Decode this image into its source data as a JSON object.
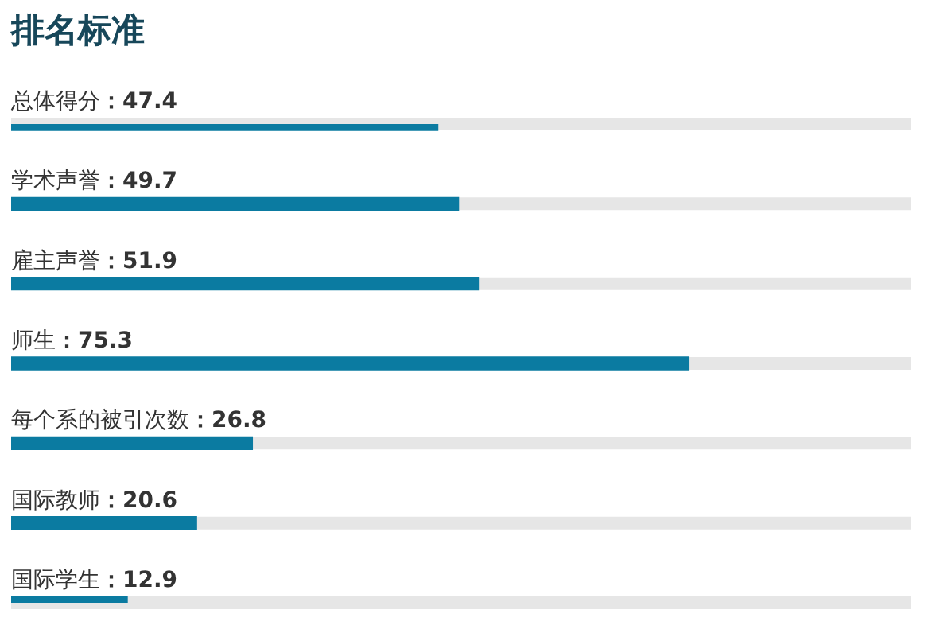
{
  "chart_data": {
    "type": "bar",
    "orientation": "horizontal",
    "title": "排名标准",
    "categories": [
      "总体得分",
      "学术声誉",
      "雇主声誉",
      "师生",
      "每个系的被引次数",
      "国际教师",
      "国际学生"
    ],
    "values": [
      47.4,
      49.7,
      51.9,
      75.3,
      26.8,
      20.6,
      12.9
    ],
    "value_labels": [
      "：47.4",
      "：49.7",
      "：51.9",
      "：75.3",
      "：26.8",
      "：20.6",
      "：12.9"
    ],
    "color": "#0b7ba1",
    "xlim": [
      0,
      100
    ],
    "tick_labels": false,
    "legend": false
  }
}
